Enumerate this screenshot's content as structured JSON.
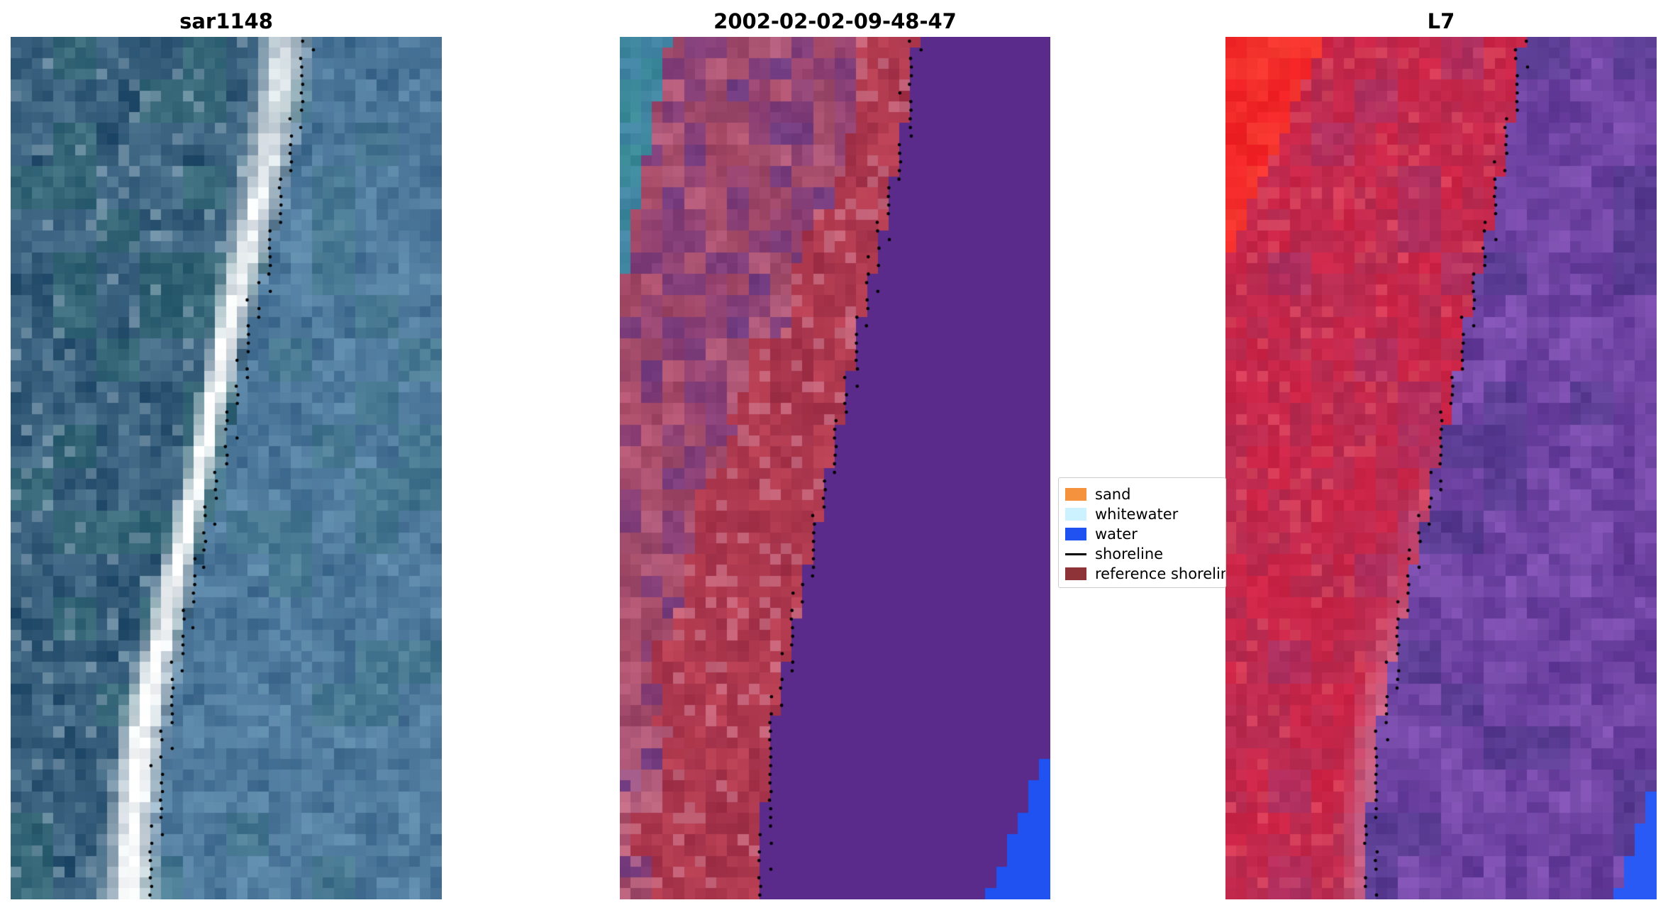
{
  "chart_data": {
    "type": "image",
    "panels": [
      "sar1148",
      "2002-02-02-09-48-47",
      "L7"
    ],
    "legend": [
      "sand",
      "whitewater",
      "water",
      "shoreline",
      "reference shoreline"
    ],
    "legend_colors": [
      "#f5923e",
      "#ccf2ff",
      "#1f52f0",
      "#000000",
      "#8e3338"
    ]
  },
  "panels": [
    {
      "title": "sar1148"
    },
    {
      "title": "2002-02-02-09-48-47"
    },
    {
      "title": "L7"
    }
  ],
  "legend": {
    "items": [
      {
        "label": "sand",
        "color": "#f5923e",
        "type": "patch"
      },
      {
        "label": "whitewater",
        "color": "#ccf2ff",
        "type": "patch"
      },
      {
        "label": "water",
        "color": "#1f52f0",
        "type": "patch"
      },
      {
        "label": "shoreline",
        "color": "#000000",
        "type": "line"
      },
      {
        "label": "reference shoreline",
        "color": "#8e3338",
        "type": "patch"
      }
    ]
  },
  "render": {
    "cols": 40,
    "rows": 80,
    "dot_color": "#000000",
    "dot_count": 100,
    "shoreline_points": [
      [
        0.0,
        0.69
      ],
      [
        0.1,
        0.662
      ],
      [
        0.2,
        0.622
      ],
      [
        0.3,
        0.575
      ],
      [
        0.4,
        0.531
      ],
      [
        0.5,
        0.49
      ],
      [
        0.6,
        0.444
      ],
      [
        0.7,
        0.4
      ],
      [
        0.8,
        0.358
      ],
      [
        0.9,
        0.336
      ],
      [
        1.0,
        0.328
      ]
    ],
    "palettes": {
      "sar": {
        "seed": 11,
        "waterA": [
          58,
          100,
          136
        ],
        "waterB": [
          92,
          136,
          170
        ],
        "waterTeal": [
          64,
          118,
          136
        ],
        "leftA": [
          38,
          78,
          108
        ],
        "leftB": [
          74,
          114,
          142
        ],
        "leftTeal": [
          50,
          106,
          116
        ],
        "leftLight": [
          138,
          166,
          184
        ],
        "white": [
          250,
          251,
          251
        ],
        "bandCenter": -0.05,
        "bandWidth": 0.058
      },
      "classification": {
        "seed": 23,
        "violet": [
          90,
          43,
          138
        ],
        "blue": [
          31,
          82,
          240
        ],
        "red": [
          186,
          64,
          84
        ],
        "redDark": [
          160,
          48,
          72
        ],
        "redLight": [
          208,
          120,
          142
        ],
        "teal": [
          58,
          138,
          152
        ],
        "tealB": [
          70,
          130,
          170
        ],
        "mottle": [
          [
            146,
            70,
            120
          ],
          [
            128,
            62,
            122
          ],
          [
            163,
            78,
            108
          ],
          [
            178,
            92,
            124
          ],
          [
            112,
            60,
            130
          ],
          [
            152,
            70,
            104
          ]
        ]
      },
      "l7": {
        "seed": 37,
        "red": [
          206,
          36,
          70
        ],
        "redB": [
          182,
          44,
          82
        ],
        "redLight": [
          226,
          80,
          100
        ],
        "brightRed": [
          240,
          32,
          36
        ],
        "brightRed2": [
          255,
          86,
          64
        ],
        "magenta": [
          158,
          52,
          112
        ],
        "pink": [
          208,
          128,
          162
        ],
        "purpleA": [
          88,
          48,
          142
        ],
        "purpleB": [
          128,
          82,
          178
        ],
        "purpleDark": [
          66,
          52,
          130
        ],
        "blue": [
          42,
          90,
          245
        ]
      }
    }
  }
}
